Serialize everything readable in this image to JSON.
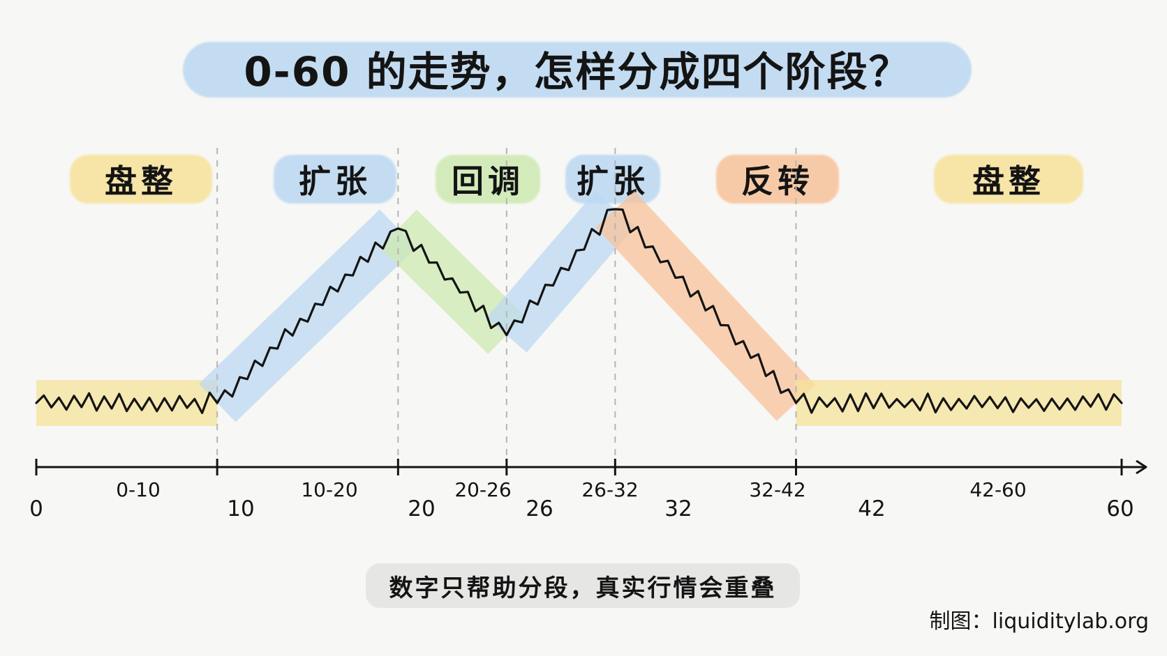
{
  "title": "0-60 的走势，怎样分成四个阶段？",
  "note": "数字只帮助分段，真实行情会重叠",
  "credit": "制图：liquiditylab.org",
  "phases": [
    {
      "label": "盘整",
      "color": "#f6e39a"
    },
    {
      "label": "扩张",
      "color": "#bcd8f2"
    },
    {
      "label": "回调",
      "color": "#cdeab0"
    },
    {
      "label": "扩张",
      "color": "#bcd8f2"
    },
    {
      "label": "反转",
      "color": "#f8c39a"
    },
    {
      "label": "盘整",
      "color": "#f6e39a"
    }
  ],
  "ranges": [
    "0-10",
    "10-20",
    "20-26",
    "26-32",
    "32-42",
    "42-60"
  ],
  "ticks": [
    "0",
    "10",
    "20",
    "26",
    "32",
    "42",
    "60"
  ],
  "segment_levels": [
    {
      "from": 0,
      "to": 10,
      "start": 0.0,
      "end": 0.0
    },
    {
      "from": 10,
      "to": 20,
      "start": 0.0,
      "end": 0.9
    },
    {
      "from": 20,
      "to": 26,
      "start": 0.9,
      "end": 0.35
    },
    {
      "from": 26,
      "to": 32,
      "start": 0.35,
      "end": 1.0
    },
    {
      "from": 32,
      "to": 42,
      "start": 1.0,
      "end": 0.0
    },
    {
      "from": 42,
      "to": 60,
      "start": 0.0,
      "end": 0.0
    }
  ],
  "colors": {
    "line": "#141414",
    "axis": "#141414",
    "divider": "#b5b5b5"
  }
}
